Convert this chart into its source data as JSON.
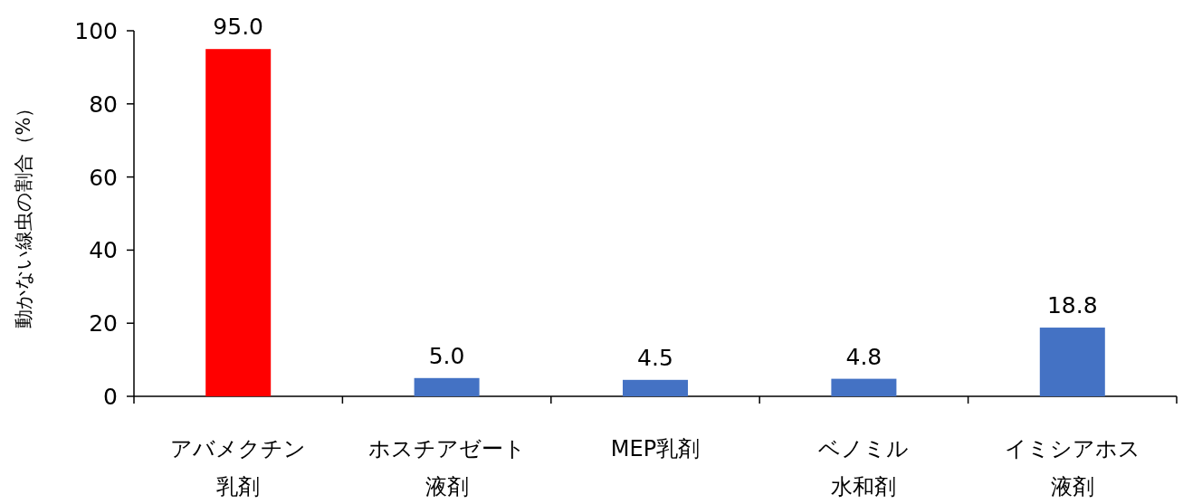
{
  "chart_data": {
    "type": "bar",
    "ylabel": "動かない線虫の割合（%）",
    "categories": [
      "アバメクチン乳剤",
      "ホスチアゼート液剤",
      "MEP乳剤",
      "ベノミル水和剤",
      "イミシアホス液剤"
    ],
    "values": [
      95.0,
      5.0,
      4.5,
      4.8,
      18.8
    ],
    "colors": [
      "#ff0000",
      "#4472c4",
      "#4472c4",
      "#4472c4",
      "#4472c4"
    ],
    "value_labels": [
      "95.0",
      "5.0",
      "4.5",
      "4.8",
      "18.8"
    ],
    "ylim": [
      0,
      100
    ],
    "yticks": [
      0,
      20,
      40,
      60,
      80,
      100
    ],
    "grid": false
  }
}
